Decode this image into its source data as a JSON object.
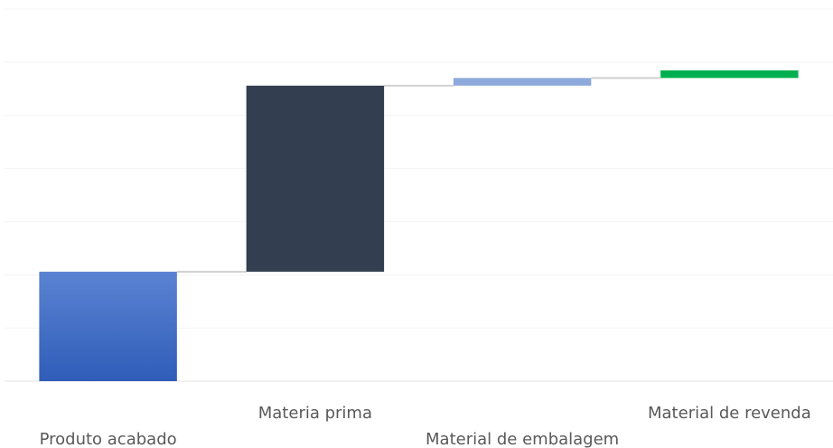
{
  "chart_data": {
    "type": "bar",
    "subtype": "waterfall",
    "categories": [
      "Produto acabado",
      "Materia prima",
      "Material de embalagem",
      "Material de revenda"
    ],
    "values": [
      100,
      170,
      7,
      7
    ],
    "running_totals": [
      100,
      270,
      277,
      284
    ],
    "colors": [
      "#4472C4",
      "#333F50",
      "#8EA9DB",
      "#00B050"
    ],
    "title": "",
    "xlabel": "",
    "ylabel": "",
    "ylim": [
      0,
      340
    ],
    "grid": true,
    "legend": "none"
  }
}
